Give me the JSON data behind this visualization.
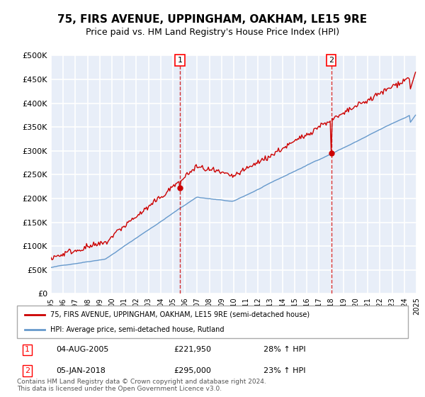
{
  "title": "75, FIRS AVENUE, UPPINGHAM, OAKHAM, LE15 9RE",
  "subtitle": "Price paid vs. HM Land Registry's House Price Index (HPI)",
  "ylim": [
    0,
    500000
  ],
  "yticks": [
    0,
    50000,
    100000,
    150000,
    200000,
    250000,
    300000,
    350000,
    400000,
    450000,
    500000
  ],
  "ytick_labels": [
    "£0",
    "£50K",
    "£100K",
    "£150K",
    "£200K",
    "£250K",
    "£300K",
    "£350K",
    "£400K",
    "£450K",
    "£500K"
  ],
  "plot_bg": "#e8eef8",
  "grid_color": "#ffffff",
  "red_line_color": "#cc0000",
  "blue_line_color": "#6699cc",
  "marker1_date_str": "04-AUG-2005",
  "marker1_price": "£221,950",
  "marker1_hpi": "28% ↑ HPI",
  "marker2_date_str": "05-JAN-2018",
  "marker2_price": "£295,000",
  "marker2_hpi": "23% ↑ HPI",
  "legend_line1": "75, FIRS AVENUE, UPPINGHAM, OAKHAM, LE15 9RE (semi-detached house)",
  "legend_line2": "HPI: Average price, semi-detached house, Rutland",
  "footnote": "Contains HM Land Registry data © Crown copyright and database right 2024.\nThis data is licensed under the Open Government Licence v3.0.",
  "title_fontsize": 11,
  "subtitle_fontsize": 9,
  "tick_fontsize": 8
}
